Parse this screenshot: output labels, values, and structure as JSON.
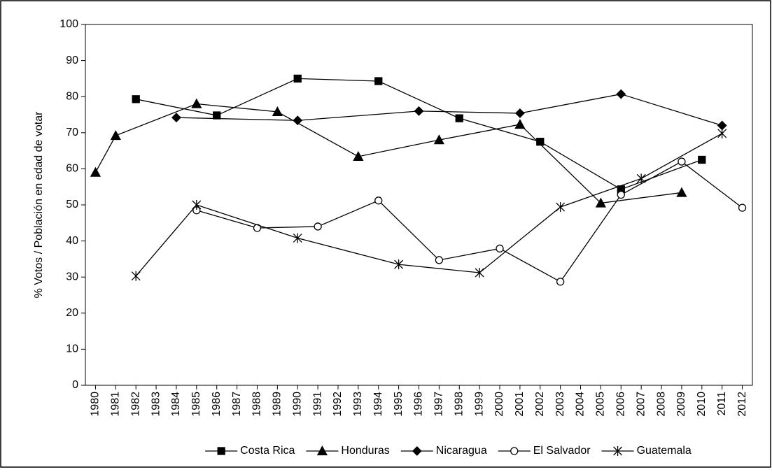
{
  "chart_data": {
    "type": "line",
    "y_label": "% Votos / Población en edad de votar",
    "xlim": [
      1979.5,
      2012.5
    ],
    "xticks": [
      1980,
      1981,
      1982,
      1983,
      1984,
      1985,
      1986,
      1987,
      1988,
      1989,
      1990,
      1991,
      1992,
      1993,
      1994,
      1995,
      1996,
      1997,
      1998,
      1999,
      2000,
      2001,
      2002,
      2003,
      2004,
      2005,
      2006,
      2007,
      2008,
      2009,
      2010,
      2011,
      2012
    ],
    "ylim": [
      0,
      100
    ],
    "yticks": [
      0,
      10,
      20,
      30,
      40,
      50,
      60,
      70,
      80,
      90,
      100
    ],
    "grid": false,
    "legend": "bottom",
    "series": [
      {
        "name": "Costa Rica",
        "color": "#000000",
        "marker": "square",
        "x": [
          1982,
          1986,
          1990,
          1994,
          1998,
          2002,
          2006,
          2010
        ],
        "values": [
          79.3,
          74.8,
          85,
          84.3,
          74,
          67.5,
          54.3,
          62.5
        ]
      },
      {
        "name": "Honduras",
        "color": "#000000",
        "marker": "triangle",
        "x": [
          1980,
          1981,
          1985,
          1989,
          1993,
          1997,
          2001,
          2005,
          2009
        ],
        "values": [
          59,
          69.2,
          78,
          75.8,
          63.4,
          68,
          72.3,
          50.5,
          53.4
        ]
      },
      {
        "name": "Nicaragua",
        "color": "#000000",
        "marker": "diamond",
        "x": [
          1984,
          1990,
          1996,
          2001,
          2006,
          2011
        ],
        "values": [
          74.2,
          73.4,
          76,
          75.4,
          80.7,
          72
        ]
      },
      {
        "name": "El Salvador",
        "color": "#000000",
        "marker": "circle",
        "x": [
          1985,
          1988,
          1991,
          1994,
          1997,
          2000,
          2003,
          2006,
          2009,
          2012
        ],
        "values": [
          48.5,
          43.6,
          44,
          51.2,
          34.7,
          37.9,
          28.7,
          52.8,
          62,
          49.2
        ]
      },
      {
        "name": "Guatemala",
        "color": "#000000",
        "marker": "star",
        "x": [
          1982,
          1985,
          1990,
          1995,
          1999,
          2003,
          2007,
          2011
        ],
        "values": [
          30.3,
          50,
          40.8,
          33.5,
          31.2,
          49.4,
          57.3,
          69.8
        ]
      }
    ]
  }
}
